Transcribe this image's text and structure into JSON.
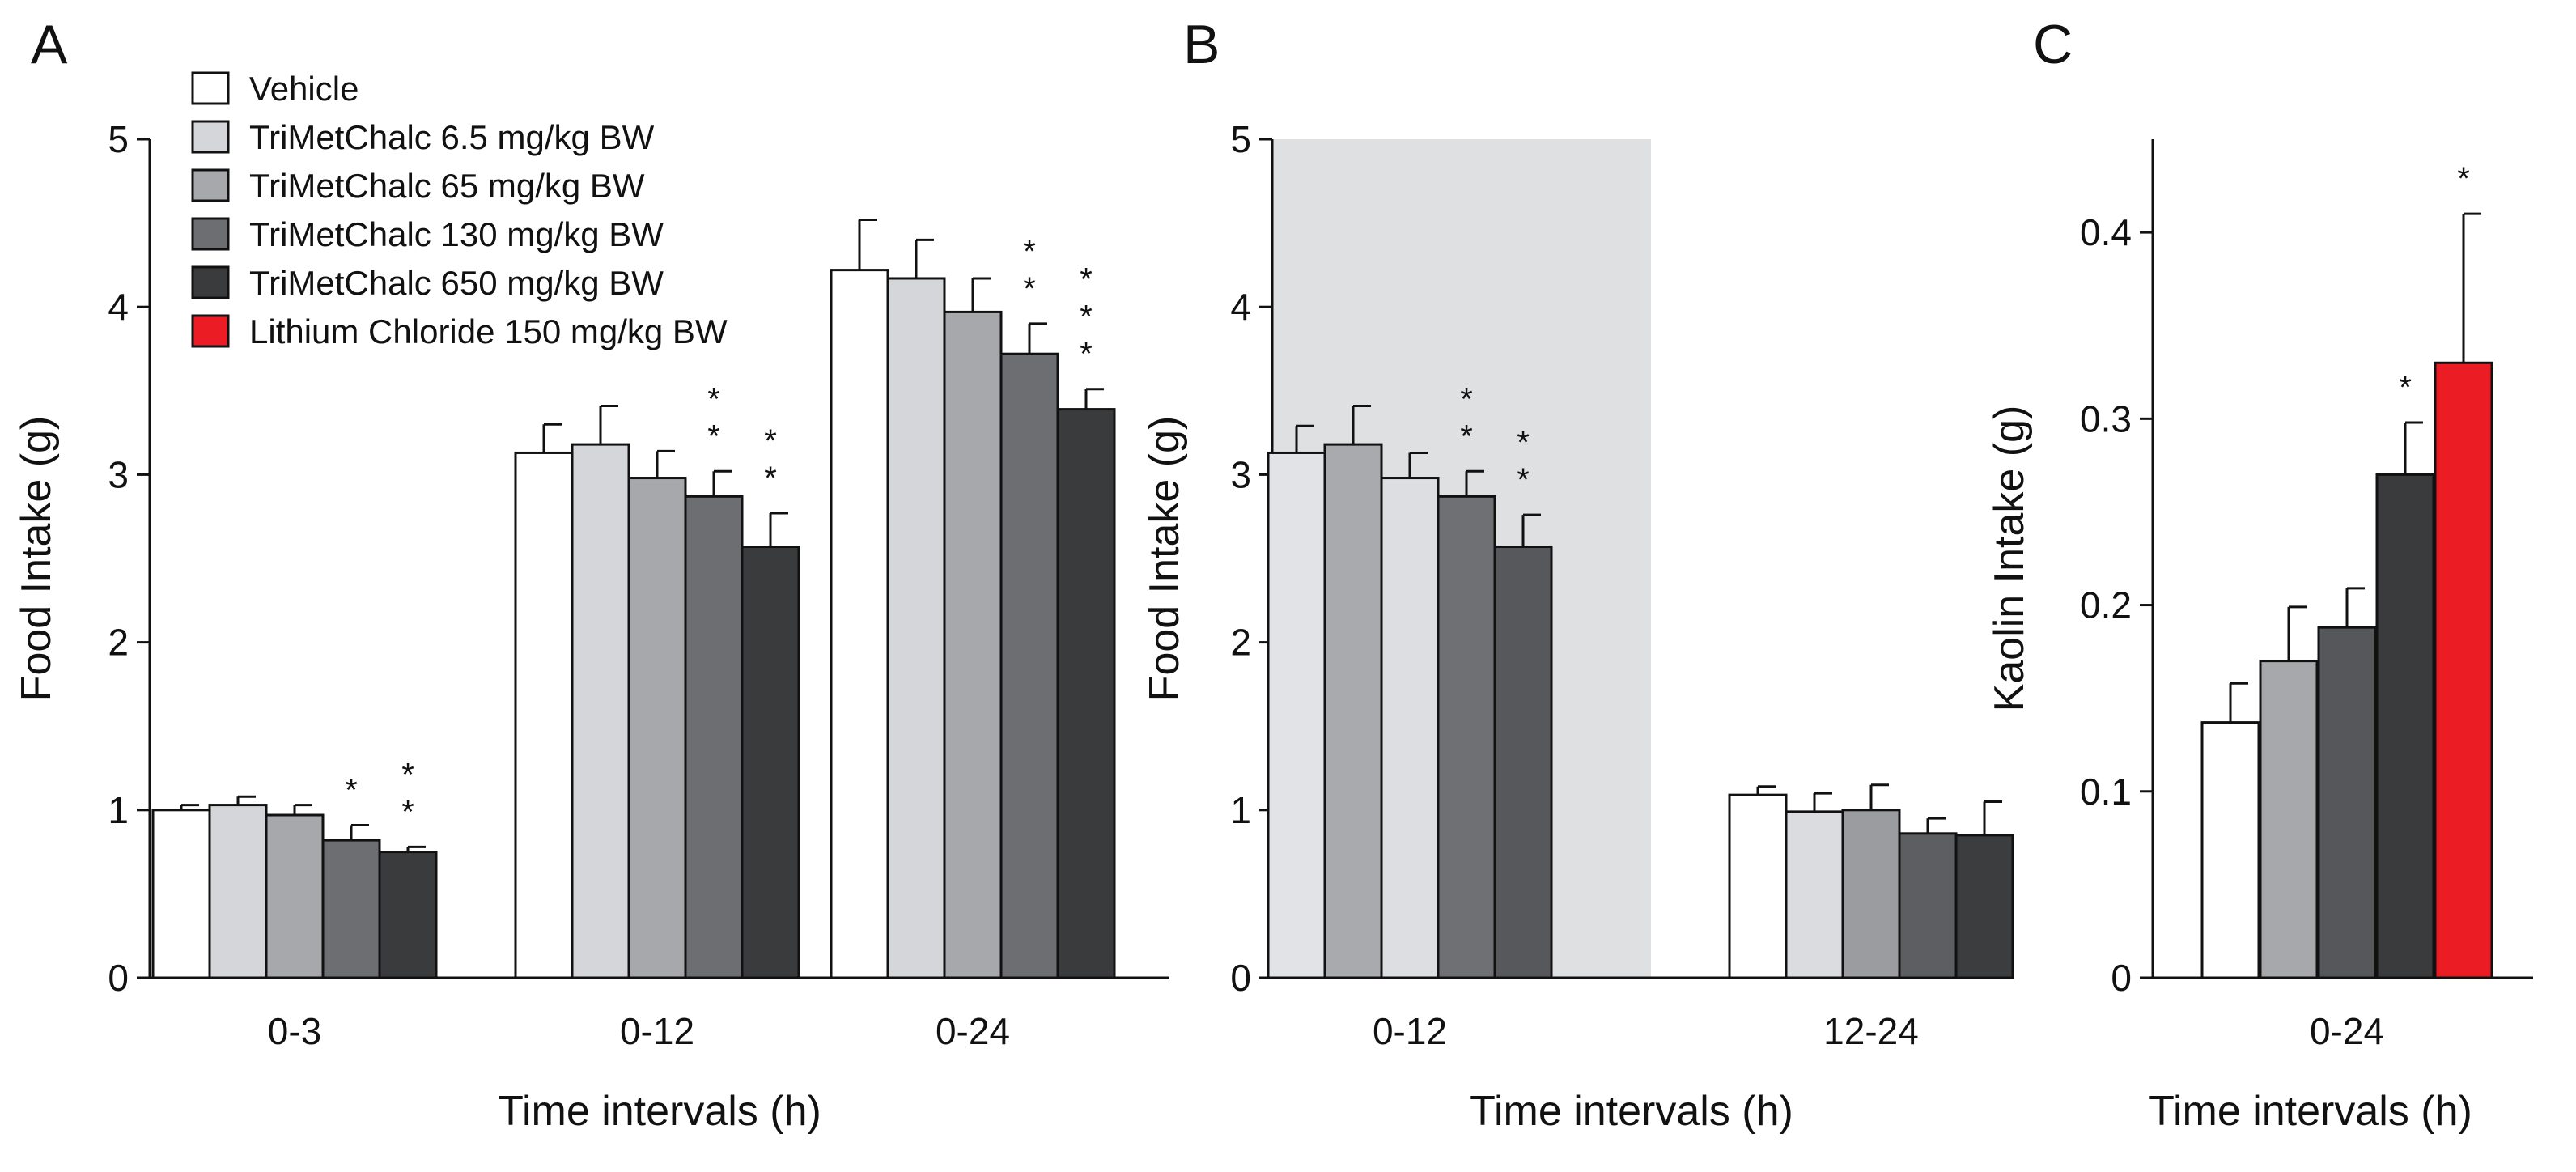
{
  "figure": {
    "panels": [
      "A",
      "B",
      "C"
    ],
    "legend": [
      {
        "label": "Vehicle",
        "color": "#ffffff"
      },
      {
        "label": "TriMetChalc 6.5 mg/kg BW",
        "color": "#d4d6d9"
      },
      {
        "label": "TriMetChalc 65 mg/kg BW",
        "color": "#a6a8ab"
      },
      {
        "label": "TriMetChalc 130 mg/kg BW",
        "color": "#6c6e71"
      },
      {
        "label": "TriMetChalc 650 mg/kg BW",
        "color": "#3a3b3d"
      },
      {
        "label": "Lithium Chloride 150 mg/kg BW",
        "color": "#ec1c24"
      }
    ]
  },
  "chart_data": [
    {
      "panel": "A",
      "type": "bar",
      "ylabel": "Food Intake (g)",
      "xlabel": "Time intervals (h)",
      "ylim": [
        0,
        5
      ],
      "yticks": [
        "0",
        "1",
        "2",
        "3",
        "4",
        "5"
      ],
      "categories": [
        "0-3",
        "0-12",
        "0-24"
      ],
      "series": [
        {
          "name": "Vehicle",
          "color": "#ffffff",
          "values": [
            1.0,
            3.13,
            4.22
          ],
          "errors": [
            0.03,
            0.17,
            0.3
          ],
          "stars": [
            "",
            "",
            ""
          ]
        },
        {
          "name": "TriMetChalc 6.5 mg/kg BW",
          "color": "#d4d6d9",
          "values": [
            1.03,
            3.18,
            4.17
          ],
          "errors": [
            0.05,
            0.23,
            0.23
          ],
          "stars": [
            "",
            "",
            ""
          ]
        },
        {
          "name": "TriMetChalc 65 mg/kg BW",
          "color": "#a6a8ab",
          "values": [
            0.97,
            2.98,
            3.97
          ],
          "errors": [
            0.06,
            0.16,
            0.2
          ],
          "stars": [
            "",
            "",
            ""
          ]
        },
        {
          "name": "TriMetChalc 130 mg/kg BW",
          "color": "#6c6e71",
          "values": [
            0.82,
            2.87,
            3.72
          ],
          "errors": [
            0.09,
            0.15,
            0.18
          ],
          "stars": [
            "*",
            "**",
            "**"
          ]
        },
        {
          "name": "TriMetChalc 650 mg/kg BW",
          "color": "#3a3b3d",
          "values": [
            0.75,
            2.57,
            3.39
          ],
          "errors": [
            0.03,
            0.2,
            0.12
          ],
          "stars": [
            "**",
            "**",
            "***"
          ]
        }
      ]
    },
    {
      "panel": "B",
      "type": "bar",
      "ylabel": "Food Intake (g)",
      "xlabel": "Time intervals (h)",
      "ylim": [
        0,
        5
      ],
      "yticks": [
        "0",
        "1",
        "2",
        "3",
        "4",
        "5"
      ],
      "categories": [
        "0-12",
        "12-24"
      ],
      "shaded_region": "0-12",
      "series": [
        {
          "name": "Vehicle",
          "colors": [
            "#e1e3e6",
            "#ffffff"
          ],
          "values": [
            3.13,
            1.09
          ],
          "errors": [
            0.16,
            0.05
          ],
          "stars": [
            "",
            ""
          ]
        },
        {
          "name": "TriMetChalc 6.5 mg/kg BW",
          "colors": [
            "#a8aaad",
            "#dadcdf"
          ],
          "values": [
            3.18,
            0.99
          ],
          "errors": [
            0.23,
            0.11
          ],
          "stars": [
            "",
            ""
          ]
        },
        {
          "name": "TriMetChalc 65 mg/kg BW",
          "colors": [
            "#dcdee1",
            "#9a9c9f"
          ],
          "values": [
            2.98,
            1.0
          ],
          "errors": [
            0.15,
            0.15
          ],
          "stars": [
            "",
            ""
          ]
        },
        {
          "name": "TriMetChalc 130 mg/kg BW",
          "colors": [
            "#6e7073",
            "#5c5e61"
          ],
          "values": [
            2.87,
            0.86
          ],
          "errors": [
            0.15,
            0.09
          ],
          "stars": [
            "**",
            ""
          ]
        },
        {
          "name": "TriMetChalc 650 mg/kg BW",
          "colors": [
            "#56585b",
            "#3c3d3f"
          ],
          "values": [
            2.57,
            0.85
          ],
          "errors": [
            0.19,
            0.2
          ],
          "stars": [
            "**",
            ""
          ]
        }
      ]
    },
    {
      "panel": "C",
      "type": "bar",
      "ylabel": "Kaolin Intake (g)",
      "xlabel": "Time intervals (h)",
      "ylim": [
        0,
        0.45
      ],
      "yticks": [
        "0",
        "0.1",
        "0.2",
        "0.3",
        "0.4"
      ],
      "ytick_values": [
        0,
        0.1,
        0.2,
        0.3,
        0.4
      ],
      "categories": [
        "0-24"
      ],
      "series": [
        {
          "name": "Vehicle",
          "color": "#ffffff",
          "values": [
            0.137
          ],
          "errors": [
            0.021
          ],
          "stars": [
            ""
          ]
        },
        {
          "name": "TriMetChalc 65 mg/kg BW",
          "color": "#a6a8ab",
          "values": [
            0.17
          ],
          "errors": [
            0.029
          ],
          "stars": [
            ""
          ]
        },
        {
          "name": "TriMetChalc 130 mg/kg BW",
          "color": "#55575a",
          "values": [
            0.188
          ],
          "errors": [
            0.021
          ],
          "stars": [
            ""
          ]
        },
        {
          "name": "TriMetChalc 650 mg/kg BW",
          "color": "#3a3b3d",
          "values": [
            0.27
          ],
          "errors": [
            0.028
          ],
          "stars": [
            "*"
          ]
        },
        {
          "name": "Lithium Chloride 150 mg/kg BW",
          "color": "#ec1c24",
          "values": [
            0.33
          ],
          "errors": [
            0.08
          ],
          "stars": [
            "*"
          ]
        }
      ]
    }
  ]
}
